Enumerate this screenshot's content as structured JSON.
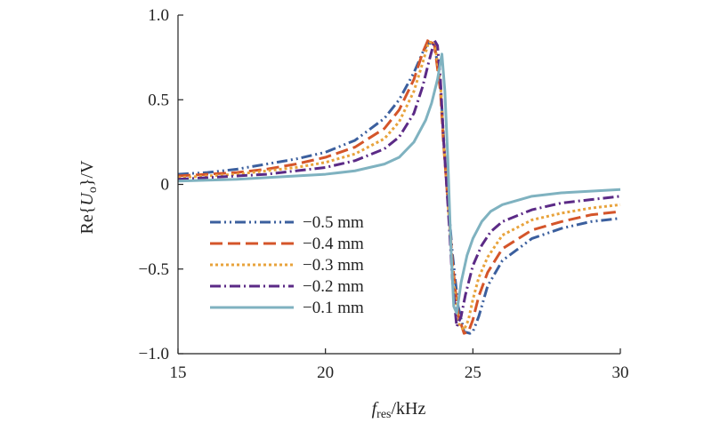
{
  "chart_data": {
    "type": "line",
    "xlabel": {
      "main": "f",
      "sub": "res",
      "unit": "/kHz"
    },
    "ylabel": {
      "prefix": "Re{",
      "main": "U",
      "sub": "o",
      "suffix": "}/V"
    },
    "xlim": [
      15,
      30
    ],
    "ylim": [
      -1.0,
      1.0
    ],
    "x_ticks": [
      15,
      20,
      25,
      30
    ],
    "x_tick_labels": [
      "15",
      "20",
      "25",
      "30"
    ],
    "y_ticks": [
      1.0,
      0.5,
      0,
      -0.5,
      -1.0
    ],
    "y_tick_labels": [
      "1.0",
      "0.5",
      "0",
      "−0.5",
      "−1.0"
    ],
    "grid": false,
    "legend_position": "lower-left",
    "series": [
      {
        "name": "−0.5 mm",
        "color": "#3b5f9e",
        "dash": "dash-dot-dot",
        "x": [
          15,
          16,
          17,
          18,
          19,
          20,
          21,
          22,
          22.5,
          23,
          23.3,
          23.5,
          23.7,
          23.9,
          24.0,
          24.1,
          24.2,
          24.3,
          24.5,
          24.7,
          24.9,
          25.0,
          25.2,
          25.5,
          26,
          27,
          28,
          29,
          30
        ],
        "y": [
          0.06,
          0.07,
          0.09,
          0.12,
          0.15,
          0.19,
          0.26,
          0.39,
          0.5,
          0.66,
          0.78,
          0.84,
          0.82,
          0.6,
          0.3,
          0.02,
          -0.18,
          -0.4,
          -0.72,
          -0.87,
          -0.88,
          -0.87,
          -0.78,
          -0.6,
          -0.45,
          -0.32,
          -0.26,
          -0.22,
          -0.2
        ]
      },
      {
        "name": "−0.4 mm",
        "color": "#d4552a",
        "dash": "long-dash",
        "x": [
          15,
          16,
          17,
          18,
          19,
          20,
          21,
          22,
          22.5,
          23,
          23.3,
          23.5,
          23.7,
          23.9,
          24.0,
          24.1,
          24.2,
          24.3,
          24.5,
          24.7,
          24.85,
          25.0,
          25.2,
          25.5,
          26,
          27,
          28,
          29,
          30
        ],
        "y": [
          0.05,
          0.06,
          0.07,
          0.09,
          0.12,
          0.16,
          0.22,
          0.33,
          0.44,
          0.62,
          0.78,
          0.86,
          0.82,
          0.55,
          0.25,
          0.02,
          -0.2,
          -0.45,
          -0.77,
          -0.88,
          -0.87,
          -0.8,
          -0.66,
          -0.52,
          -0.38,
          -0.27,
          -0.22,
          -0.18,
          -0.16
        ]
      },
      {
        "name": "−0.3 mm",
        "color": "#e8a33c",
        "dash": "dotted",
        "x": [
          15,
          16,
          17,
          18,
          19,
          20,
          21,
          22,
          22.5,
          23,
          23.3,
          23.5,
          23.7,
          23.9,
          24.0,
          24.1,
          24.2,
          24.3,
          24.5,
          24.7,
          24.85,
          25.0,
          25.2,
          25.5,
          26,
          27,
          28,
          29,
          30
        ],
        "y": [
          0.04,
          0.05,
          0.06,
          0.08,
          0.1,
          0.13,
          0.18,
          0.27,
          0.37,
          0.55,
          0.72,
          0.84,
          0.84,
          0.6,
          0.28,
          0.02,
          -0.22,
          -0.5,
          -0.82,
          -0.86,
          -0.8,
          -0.68,
          -0.55,
          -0.43,
          -0.3,
          -0.21,
          -0.17,
          -0.14,
          -0.12
        ]
      },
      {
        "name": "−0.2 mm",
        "color": "#5b2a86",
        "dash": "dash-dot",
        "x": [
          15,
          16,
          17,
          18,
          19,
          20,
          21,
          22,
          22.5,
          23,
          23.3,
          23.5,
          23.7,
          23.8,
          23.9,
          24.0,
          24.1,
          24.2,
          24.3,
          24.45,
          24.6,
          24.75,
          25.0,
          25.3,
          25.6,
          26,
          27,
          28,
          29,
          30
        ],
        "y": [
          0.03,
          0.04,
          0.05,
          0.06,
          0.08,
          0.1,
          0.14,
          0.21,
          0.28,
          0.42,
          0.58,
          0.72,
          0.85,
          0.82,
          0.62,
          0.28,
          0.02,
          -0.25,
          -0.55,
          -0.84,
          -0.78,
          -0.65,
          -0.48,
          -0.36,
          -0.28,
          -0.22,
          -0.15,
          -0.11,
          -0.09,
          -0.07
        ]
      },
      {
        "name": "−0.1 mm",
        "color": "#7fb2c0",
        "dash": "solid",
        "x": [
          15,
          16,
          17,
          18,
          19,
          20,
          21,
          22,
          22.5,
          23,
          23.4,
          23.6,
          23.8,
          23.95,
          24.05,
          24.15,
          24.25,
          24.35,
          24.45,
          24.6,
          24.8,
          25.0,
          25.3,
          25.6,
          26,
          27,
          28,
          29,
          30
        ],
        "y": [
          0.02,
          0.025,
          0.03,
          0.04,
          0.05,
          0.06,
          0.08,
          0.12,
          0.16,
          0.25,
          0.38,
          0.48,
          0.62,
          0.77,
          0.55,
          0.15,
          -0.35,
          -0.72,
          -0.76,
          -0.58,
          -0.42,
          -0.32,
          -0.22,
          -0.16,
          -0.12,
          -0.07,
          -0.05,
          -0.04,
          -0.03
        ]
      }
    ]
  }
}
